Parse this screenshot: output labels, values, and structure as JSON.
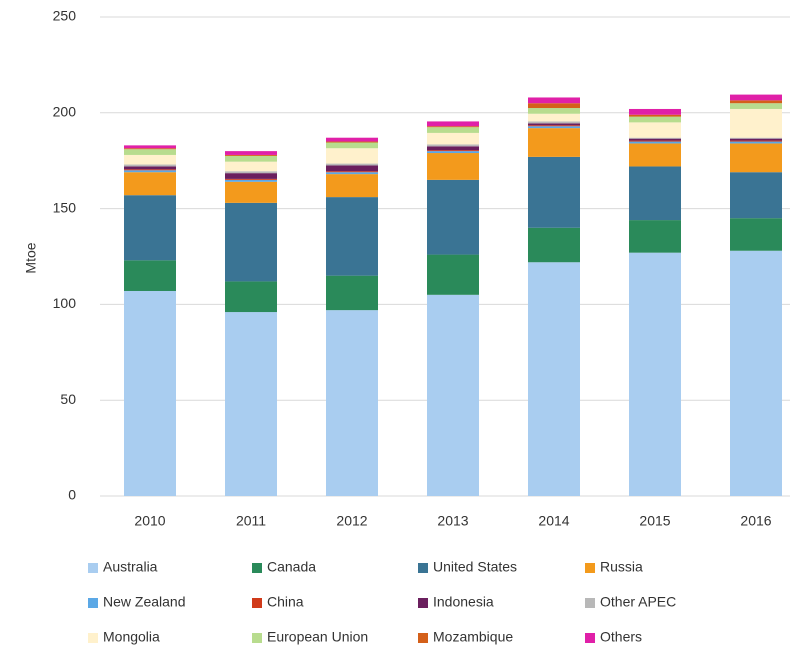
{
  "chart_data": {
    "type": "stacked_bar",
    "y_label": "Mtoe",
    "categories": [
      "2010",
      "2011",
      "2012",
      "2013",
      "2014",
      "2015",
      "2016"
    ],
    "series": [
      {
        "name": "Australia",
        "color": "#a9cdf0",
        "values": [
          107,
          96,
          97,
          105,
          122,
          127,
          128
        ]
      },
      {
        "name": "Canada",
        "color": "#2a8a5a",
        "values": [
          16,
          16,
          18,
          21,
          18,
          17,
          17
        ]
      },
      {
        "name": "United States",
        "color": "#3a7494",
        "values": [
          34,
          41,
          41,
          39,
          37,
          28,
          24
        ]
      },
      {
        "name": "Russia",
        "color": "#f39a1c",
        "values": [
          12,
          11,
          12,
          14,
          15,
          12,
          15
        ]
      },
      {
        "name": "New Zealand",
        "color": "#5ba8e6",
        "values": [
          1,
          1,
          1,
          1,
          1,
          1,
          1
        ]
      },
      {
        "name": "China",
        "color": "#d03a1a",
        "values": [
          0.5,
          0.5,
          0.5,
          0.5,
          0.5,
          0.5,
          0.5
        ]
      },
      {
        "name": "Indonesia",
        "color": "#6b1f5e",
        "values": [
          1.5,
          3,
          3,
          2,
          1,
          1,
          1
        ]
      },
      {
        "name": "Other APEC",
        "color": "#b8b8b8",
        "values": [
          1,
          1,
          1,
          1,
          1,
          0.5,
          0.5
        ]
      },
      {
        "name": "Mongolia",
        "color": "#fff1cc",
        "values": [
          5,
          5,
          8,
          6,
          4,
          8,
          15
        ]
      },
      {
        "name": "European Union",
        "color": "#b8dc8e",
        "values": [
          3,
          3,
          3,
          3,
          3,
          3,
          3
        ]
      },
      {
        "name": "Mozambique",
        "color": "#d4601a",
        "values": [
          0.5,
          0.5,
          0.5,
          0.5,
          2.5,
          1,
          1.5
        ]
      },
      {
        "name": "Others",
        "color": "#e020a8",
        "values": [
          1.5,
          2,
          2,
          2.5,
          3,
          3,
          3
        ]
      }
    ],
    "ylim": [
      0,
      250
    ],
    "yticks": [
      0,
      50,
      100,
      150,
      200,
      250
    ],
    "grid": true
  }
}
